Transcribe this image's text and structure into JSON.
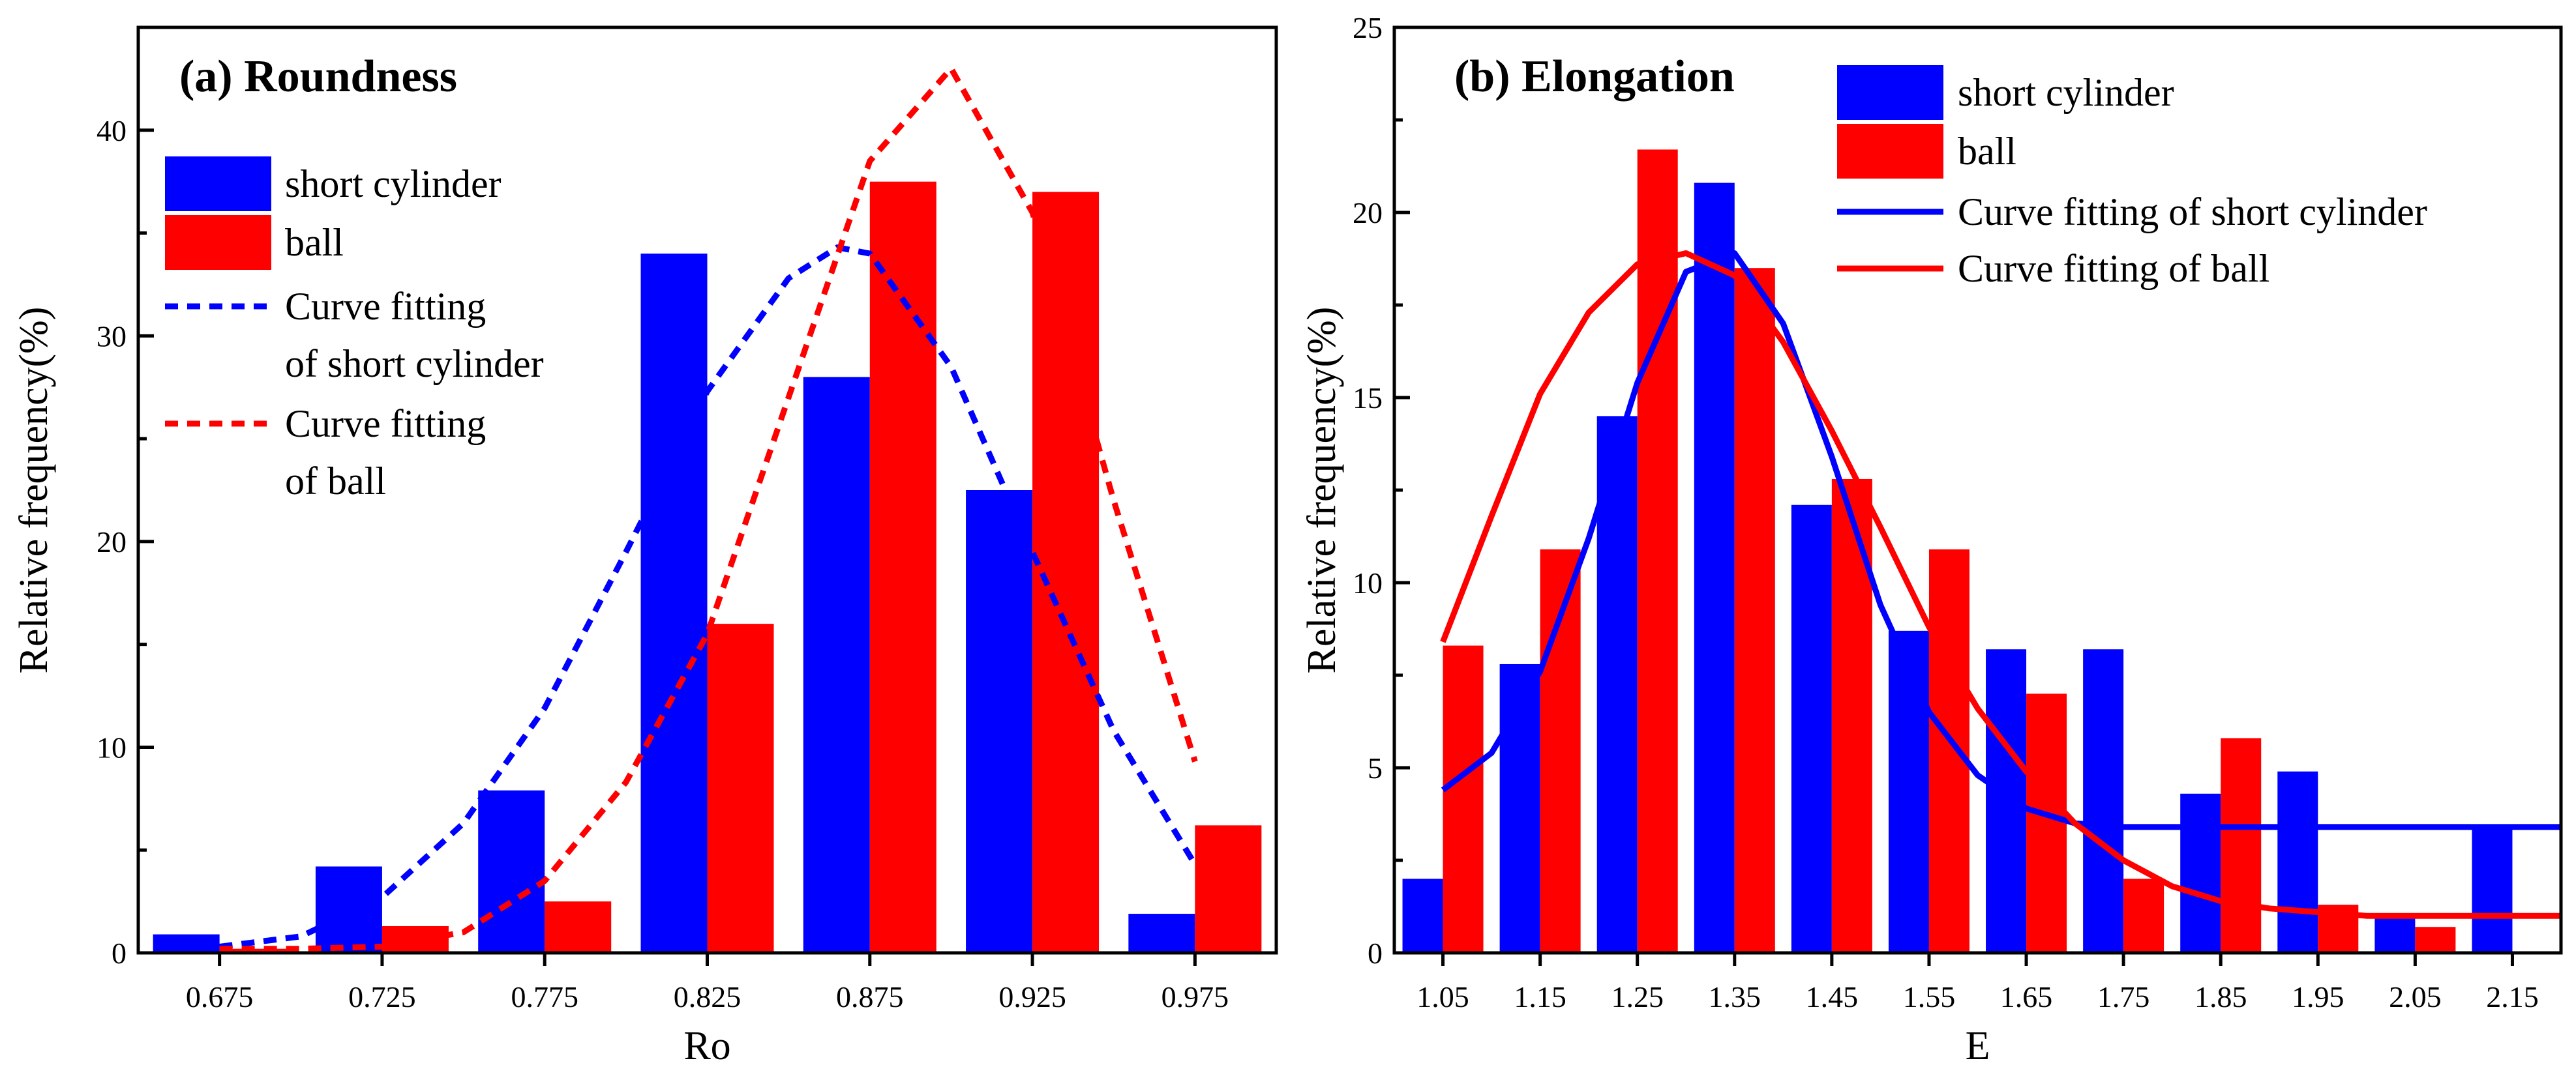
{
  "chart_data": [
    {
      "type": "bar",
      "title": "(a) Roundness",
      "xlabel": "Ro",
      "ylabel": "Relative frequency(%)",
      "categories": [
        "0.675",
        "0.725",
        "0.775",
        "0.825",
        "0.875",
        "0.925",
        "0.975"
      ],
      "ylim": [
        0,
        45
      ],
      "yticks": [
        0,
        10,
        20,
        30,
        40
      ],
      "series": [
        {
          "name": "short cylinder",
          "color": "#0000ff",
          "values": [
            0.9,
            4.2,
            7.9,
            34.0,
            28.0,
            22.5,
            1.9
          ]
        },
        {
          "name": "ball",
          "color": "#ff0000",
          "values": [
            0.2,
            1.3,
            2.5,
            16.0,
            37.5,
            37.0,
            6.2
          ]
        }
      ],
      "curves": [
        {
          "name": "Curve fitting of short cylinder",
          "legend_lines": [
            "Curve fitting",
            "of short cylinder"
          ],
          "color": "#0000ff",
          "style": "dashed",
          "x": [
            0.675,
            0.7,
            0.725,
            0.75,
            0.775,
            0.8,
            0.825,
            0.85,
            0.865,
            0.875,
            0.9,
            0.925,
            0.95,
            0.975
          ],
          "y": [
            0.3,
            0.8,
            2.7,
            6.3,
            11.9,
            19.5,
            27.3,
            32.8,
            34.3,
            34.0,
            28.5,
            19.5,
            10.8,
            4.3
          ]
        },
        {
          "name": "Curve fitting of ball",
          "legend_lines": [
            "Curve fitting",
            "of ball"
          ],
          "color": "#ff0000",
          "style": "dashed",
          "x": [
            0.675,
            0.7,
            0.725,
            0.75,
            0.775,
            0.8,
            0.825,
            0.85,
            0.875,
            0.9,
            0.925,
            0.95,
            0.975
          ],
          "y": [
            0.2,
            0.2,
            0.3,
            1.0,
            3.5,
            8.3,
            15.5,
            27.0,
            38.5,
            43.0,
            36.0,
            22.0,
            9.3
          ]
        }
      ]
    },
    {
      "type": "bar",
      "title": "(b) Elongation",
      "xlabel": "E",
      "ylabel": "Relative frequency(%)",
      "categories": [
        "1.05",
        "1.15",
        "1.25",
        "1.35",
        "1.45",
        "1.55",
        "1.65",
        "1.75",
        "1.85",
        "1.95",
        "2.05",
        "2.15"
      ],
      "ylim": [
        0,
        25
      ],
      "yticks": [
        0,
        5,
        10,
        15,
        20,
        25
      ],
      "series": [
        {
          "name": "short cylinder",
          "color": "#0000ff",
          "values": [
            2.0,
            7.8,
            14.5,
            20.8,
            12.1,
            8.7,
            8.2,
            8.2,
            4.3,
            4.9,
            1.0,
            3.4
          ]
        },
        {
          "name": "ball",
          "color": "#ff0000",
          "values": [
            8.3,
            10.9,
            21.7,
            18.5,
            12.8,
            10.9,
            7.0,
            2.0,
            5.8,
            1.3,
            0.7,
            null
          ]
        }
      ],
      "curves": [
        {
          "name": "Curve fitting of short cylinder",
          "legend_lines": [
            "Curve fitting of short cylinder"
          ],
          "color": "#0000ff",
          "style": "solid",
          "x": [
            1.05,
            1.1,
            1.15,
            1.2,
            1.25,
            1.3,
            1.35,
            1.4,
            1.45,
            1.5,
            1.55,
            1.6,
            1.65,
            1.7,
            1.75,
            1.8,
            1.9,
            2.0,
            2.1,
            2.2
          ],
          "y": [
            4.4,
            5.4,
            7.6,
            11.2,
            15.4,
            18.4,
            18.9,
            17.0,
            13.4,
            9.4,
            6.5,
            4.8,
            3.9,
            3.5,
            3.4,
            3.4,
            3.4,
            3.4,
            3.4,
            3.4
          ]
        },
        {
          "name": "Curve fitting of  ball",
          "legend_lines": [
            "Curve fitting of  ball"
          ],
          "color": "#ff0000",
          "style": "solid",
          "x": [
            1.05,
            1.1,
            1.15,
            1.2,
            1.25,
            1.3,
            1.35,
            1.4,
            1.45,
            1.5,
            1.55,
            1.6,
            1.65,
            1.7,
            1.75,
            1.8,
            1.85,
            1.9,
            1.95,
            2.0,
            2.1,
            2.2
          ],
          "y": [
            8.4,
            11.8,
            15.1,
            17.3,
            18.6,
            18.9,
            18.3,
            16.5,
            14.1,
            11.5,
            8.8,
            6.6,
            4.9,
            3.5,
            2.5,
            1.8,
            1.4,
            1.2,
            1.1,
            1.0,
            1.0,
            1.0
          ]
        }
      ]
    }
  ]
}
